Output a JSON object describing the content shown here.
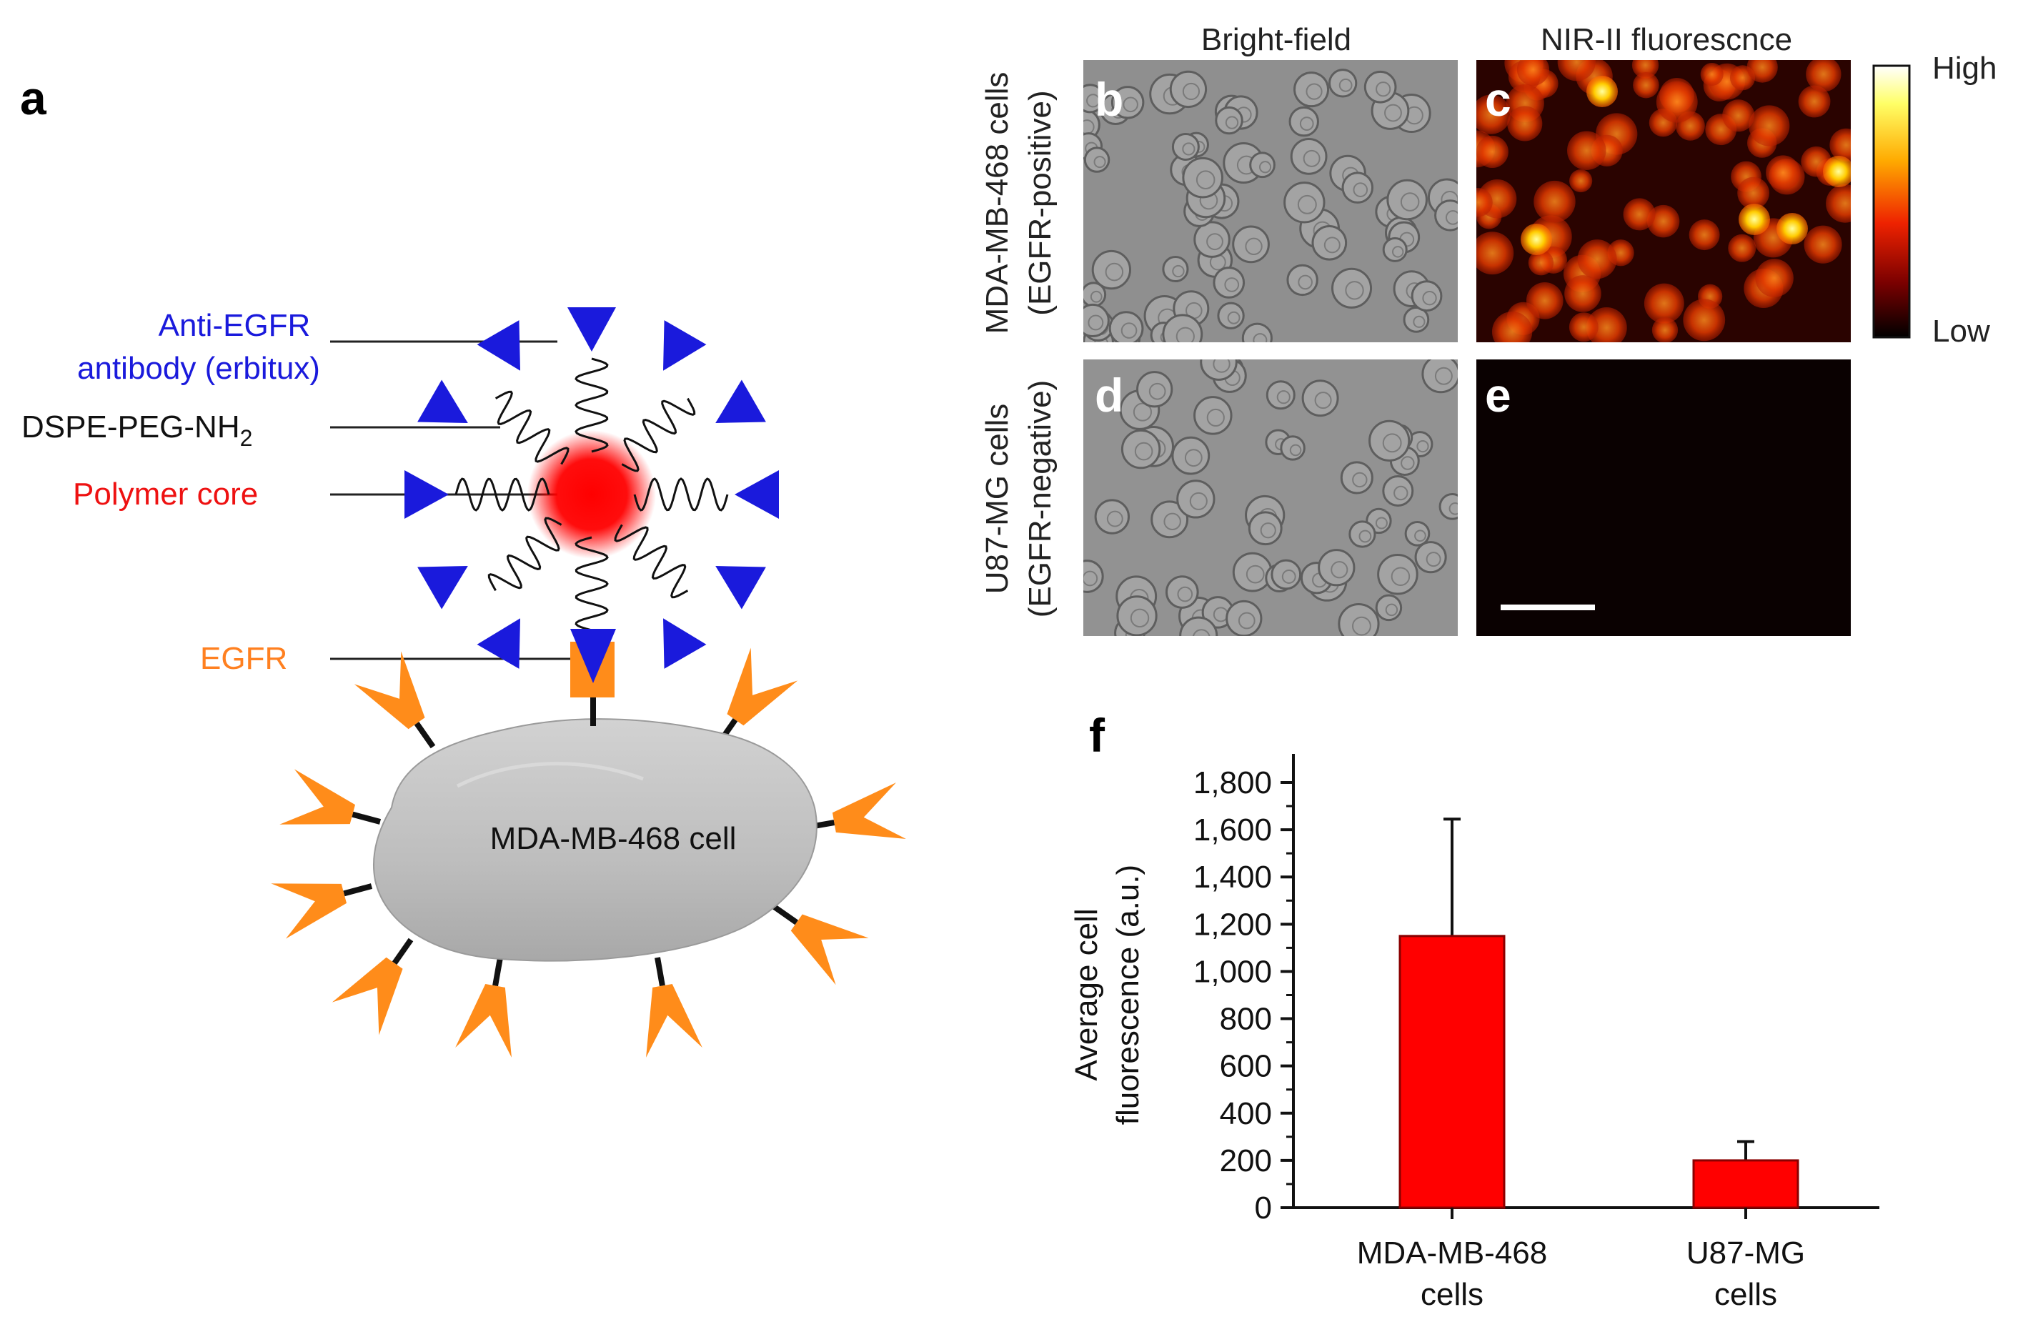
{
  "panel_a": {
    "letter": "a",
    "labels": {
      "antibody_line1": "Anti-EGFR",
      "antibody_line2": "antibody (erbitux)",
      "dspe_main": "DSPE-PEG-NH",
      "dspe_sub": "2",
      "polymer_core": "Polymer core",
      "egfr": "EGFR",
      "cell": "MDA-MB-468 cell"
    },
    "colors": {
      "antibody": "#1a1adc",
      "core": "#ff0000",
      "egfr": "#ff8c1a",
      "cell_fill": "#c4c4c4"
    }
  },
  "panels_bcde": {
    "col_headers": [
      "Bright-field",
      "NIR-II fluorescnce"
    ],
    "row_labels": [
      {
        "line1": "MDA-MB-468 cells",
        "line2": "(EGFR-positive)"
      },
      {
        "line1": "U87-MG cells",
        "line2": "(EGFR-negative)"
      }
    ],
    "letters": [
      "b",
      "c",
      "d",
      "e"
    ],
    "colorbar": {
      "high": "High",
      "low": "Low"
    }
  },
  "panel_f": {
    "letter": "f"
  },
  "chart_data": {
    "type": "bar",
    "categories": [
      [
        "MDA-MB-468",
        "cells"
      ],
      [
        "U87-MG",
        "cells"
      ]
    ],
    "values": [
      1150,
      200
    ],
    "error_upper": [
      1645,
      280
    ],
    "ylabel": [
      "Average cell",
      "fluorescence (a.u.)"
    ],
    "ylim": [
      0,
      1800
    ],
    "yticks": [
      0,
      200,
      400,
      600,
      800,
      1000,
      1200,
      1400,
      1600,
      1800
    ],
    "ytick_labels": [
      "0",
      "200",
      "400",
      "600",
      "800",
      "1,000",
      "1,200",
      "1,400",
      "1,600",
      "1,800"
    ],
    "bar_color": "#ff0000",
    "grid": false
  }
}
